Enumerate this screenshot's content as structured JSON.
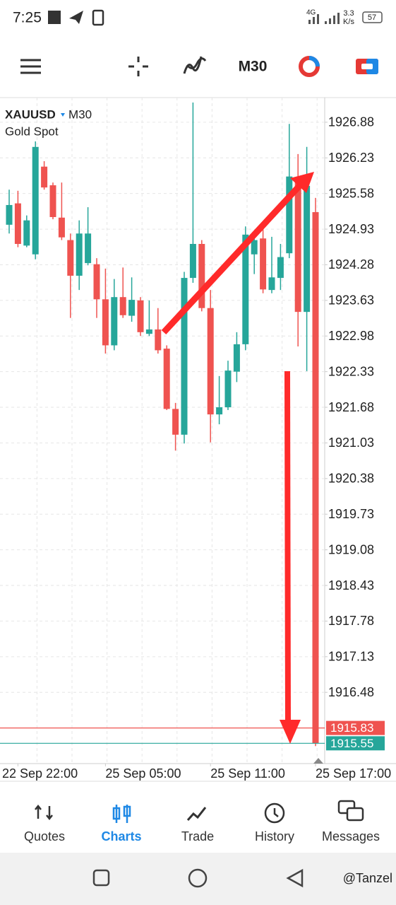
{
  "status_bar": {
    "time": "7:25",
    "network": "4G",
    "speed": "3.3",
    "speed_unit": "K/s",
    "battery": "57"
  },
  "toolbar": {
    "timeframe": "M30"
  },
  "chart_data": {
    "type": "candlestick",
    "symbol": "XAUUSD",
    "timeframe": "M30",
    "description": "Gold Spot",
    "categories": [
      null,
      "22 Sep 22:00",
      null,
      null,
      null,
      null,
      null,
      null,
      null,
      null,
      null,
      "25 Sep 05:00",
      null,
      null,
      null,
      null,
      null,
      null,
      null,
      null,
      null,
      null,
      null,
      "25 Sep 11:00",
      null,
      null,
      null,
      null,
      null,
      null,
      null,
      null,
      null,
      null,
      null,
      "25 Sep 17:00"
    ],
    "open": [
      1925.01,
      1925.4,
      1924.63,
      1924.47,
      1926.07,
      1925.73,
      1925.14,
      1924.73,
      1924.08,
      1924.31,
      1924.29,
      1923.65,
      1922.81,
      1923.69,
      1923.35,
      1923.63,
      1923.02,
      1923.1,
      1922.75,
      1921.65,
      1921.18,
      1924.04,
      1924.66,
      1923.49,
      1921.55,
      1921.68,
      1922.33,
      1922.83,
      1924.47,
      1924.76,
      1923.82,
      1924.04,
      1924.49,
      1925.82,
      1923.42,
      1925.24
    ],
    "high": [
      1925.65,
      1925.63,
      1925.18,
      1926.53,
      1926.17,
      1925.78,
      1925.78,
      1924.85,
      1925.09,
      1925.33,
      1924.4,
      1924.21,
      1924.02,
      1924.23,
      1924.05,
      1923.69,
      1923.63,
      1923.49,
      1922.81,
      1921.76,
      1924.15,
      1927.24,
      1924.73,
      1923.82,
      1922.25,
      1922.53,
      1923.05,
      1924.98,
      1924.85,
      1924.98,
      1924.79,
      1924.66,
      1926.85,
      1926.3,
      1926.43,
      1925.5
    ],
    "low": [
      1924.85,
      1924.6,
      1924.6,
      1924.38,
      1925.65,
      1925.11,
      1924.73,
      1923.31,
      1923.82,
      1924.27,
      1923.31,
      1922.66,
      1922.72,
      1923.31,
      1923.24,
      1922.98,
      1922.98,
      1922.66,
      1921.63,
      1920.89,
      1921.02,
      1923.95,
      1923.43,
      1921.04,
      1921.37,
      1921.63,
      1922.14,
      1922.72,
      1924.11,
      1923.76,
      1923.76,
      1923.82,
      1924.4,
      1922.79,
      1922.34,
      1915.5
    ],
    "close": [
      1925.37,
      1924.66,
      1925.09,
      1926.43,
      1925.69,
      1925.15,
      1924.78,
      1924.08,
      1924.85,
      1924.85,
      1923.65,
      1922.81,
      1923.69,
      1923.36,
      1923.64,
      1923.05,
      1923.1,
      1922.72,
      1921.65,
      1921.18,
      1924.04,
      1924.66,
      1923.49,
      1921.55,
      1921.68,
      1922.35,
      1922.83,
      1924.83,
      1924.73,
      1923.83,
      1924.05,
      1924.42,
      1925.89,
      1923.42,
      1925.72,
      1915.55
    ],
    "up_color": "#26a69a",
    "down_color": "#ef5350",
    "ylim": [
      1915.18,
      1927.33
    ],
    "yticks": [
      1926.88,
      1926.23,
      1925.58,
      1924.93,
      1924.28,
      1923.63,
      1922.98,
      1922.33,
      1921.68,
      1921.03,
      1920.38,
      1919.73,
      1919.08,
      1918.43,
      1917.78,
      1917.13,
      1916.48
    ],
    "grid": true,
    "price_lines": [
      {
        "value": 1915.83,
        "color": "#ef5350"
      },
      {
        "value": 1915.55,
        "color": "#26a69a"
      }
    ]
  },
  "nav": [
    {
      "label": "Quotes"
    },
    {
      "label": "Charts"
    },
    {
      "label": "Trade"
    },
    {
      "label": "History"
    },
    {
      "label": "Messages"
    }
  ],
  "watermark": "@Tanzel"
}
